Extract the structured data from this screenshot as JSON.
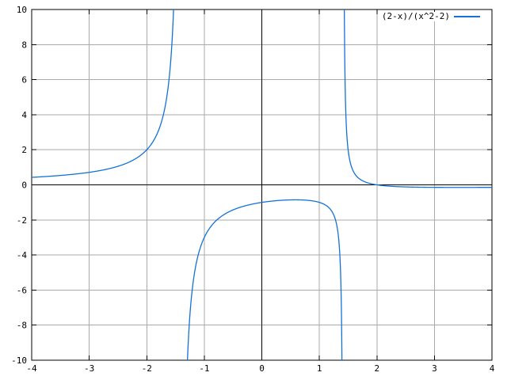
{
  "figure": {
    "background": "#ffffff",
    "border_color": "#000000"
  },
  "chart_data": {
    "type": "line",
    "title": "",
    "xlabel": "",
    "ylabel": "",
    "xlim": [
      -4,
      4
    ],
    "ylim": [
      -10,
      10
    ],
    "xticks": [
      -4,
      -3,
      -2,
      -1,
      0,
      1,
      2,
      3,
      4
    ],
    "yticks": [
      -10,
      -8,
      -6,
      -4,
      -2,
      0,
      2,
      4,
      6,
      8,
      10
    ],
    "grid": true,
    "grid_color": "#aaaaaa",
    "zero_axes_color": "#000000",
    "tick_label_color": "#000000",
    "legend": {
      "position": "top-right",
      "label": "(2-x)/(x^2-2)"
    },
    "series": [
      {
        "name": "(2-x)/(x^2-2)",
        "expression": "(2-x)/(x^2-2)",
        "rational": {
          "numerator_coeffs_ascending": [
            2,
            -1
          ],
          "denominator_coeffs_ascending": [
            -2,
            0,
            1
          ]
        },
        "color": "#1372d8",
        "samples": 2000,
        "vertical_asymptotes_x": [
          -1.41421356,
          1.41421356
        ],
        "key_points": [
          {
            "x": -4,
            "y": 0.4286
          },
          {
            "x": -2,
            "y": 2
          },
          {
            "x": 0,
            "y": -1
          },
          {
            "x": 0.5858,
            "y": -0.8536
          },
          {
            "x": 2,
            "y": 0
          },
          {
            "x": 4,
            "y": -0.1429
          }
        ],
        "branches_x": [
          [
            -4,
            -1.5344
          ],
          [
            -1.2925,
            1.3925
          ],
          [
            1.4339,
            4
          ]
        ]
      }
    ]
  }
}
